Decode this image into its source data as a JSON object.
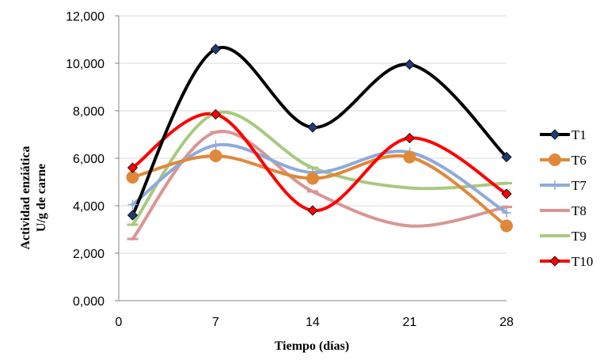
{
  "chart_data": {
    "type": "line",
    "smooth": true,
    "xlabel": "Tiempo (días)",
    "ylabel_lines": [
      "Actividad enziática",
      "U/g de carne"
    ],
    "xlim": [
      0,
      28
    ],
    "ylim": [
      0,
      12
    ],
    "x_ticks": [
      0,
      7,
      14,
      21,
      28
    ],
    "y_ticks": [
      0,
      2,
      4,
      6,
      8,
      10,
      12
    ],
    "y_tick_labels": [
      "0,000",
      "2,000",
      "4,000",
      "6,000",
      "8,000",
      "10,000",
      "12,000"
    ],
    "grid": "horizontal",
    "legend_position": "right",
    "series": [
      {
        "name": "T1",
        "color": "#000000",
        "marker": "diamond",
        "marker_fill": "#1f3b73",
        "x": [
          1,
          7,
          14,
          21,
          28
        ],
        "y": [
          3.6,
          10.6,
          7.3,
          9.95,
          6.05
        ]
      },
      {
        "name": "T6",
        "color": "#e0883a",
        "marker": "circle",
        "marker_fill": "#e0883a",
        "x": [
          1,
          7,
          14,
          21,
          28
        ],
        "y": [
          5.2,
          6.1,
          5.15,
          6.05,
          3.15
        ]
      },
      {
        "name": "T7",
        "color": "#8eaadb",
        "marker": "plus",
        "marker_fill": "#8eaadb",
        "x": [
          1,
          7,
          14,
          21,
          28
        ],
        "y": [
          4.05,
          6.55,
          5.4,
          6.25,
          3.7
        ]
      },
      {
        "name": "T8",
        "color": "#d99694",
        "marker": "dash",
        "marker_fill": "#d99694",
        "x": [
          1,
          7,
          14,
          21,
          28
        ],
        "y": [
          2.6,
          7.1,
          4.6,
          3.15,
          3.95
        ]
      },
      {
        "name": "T9",
        "color": "#a8c97f",
        "marker": "dash",
        "marker_fill": "#a8c97f",
        "x": [
          1,
          7,
          14,
          21,
          28
        ],
        "y": [
          3.2,
          7.9,
          5.6,
          4.75,
          4.95
        ]
      },
      {
        "name": "T10",
        "color": "#ff0000",
        "marker": "diamond",
        "marker_fill": "#ff0000",
        "x": [
          1,
          7,
          14,
          21,
          28
        ],
        "y": [
          5.6,
          7.85,
          3.8,
          6.85,
          4.5
        ]
      }
    ]
  }
}
